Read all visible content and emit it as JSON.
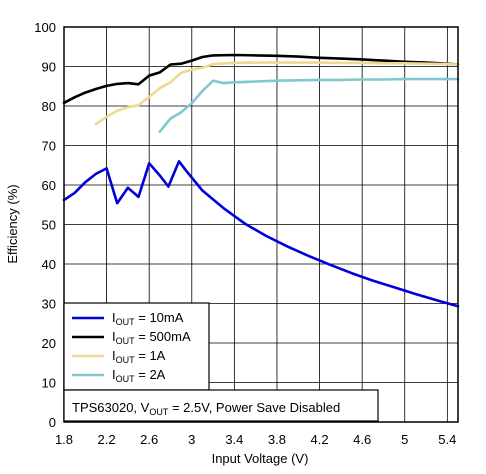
{
  "chart_data": {
    "type": "line",
    "xlabel": "Input Voltage (V)",
    "ylabel": "Efficiency (%)",
    "xlim": [
      1.8,
      5.5
    ],
    "ylim": [
      0,
      100
    ],
    "x_ticks": [
      "1.8",
      "2.2",
      "2.6",
      "3",
      "3.4",
      "3.8",
      "4.2",
      "4.6",
      "5",
      "5.4"
    ],
    "y_ticks": [
      "0",
      "10",
      "20",
      "30",
      "40",
      "50",
      "60",
      "70",
      "80",
      "90",
      "100"
    ],
    "x_tick_values": [
      1.8,
      2.2,
      2.6,
      3.0,
      3.4,
      3.8,
      4.2,
      4.6,
      5.0,
      5.4
    ],
    "y_tick_values": [
      0,
      10,
      20,
      30,
      40,
      50,
      60,
      70,
      80,
      90,
      100
    ],
    "grid": true,
    "legend_position": "bottom-left",
    "annotation": {
      "prefix": "TPS63020, V",
      "sub": "OUT",
      "suffix": " = 2.5V, Power Save Disabled"
    },
    "series": [
      {
        "name": "IOUT = 10mA",
        "label_prefix": "I",
        "label_sub": "OUT",
        "label_suffix": " = 10mA",
        "color": "#0000dd",
        "x": [
          1.8,
          1.9,
          2.0,
          2.1,
          2.2,
          2.3,
          2.4,
          2.5,
          2.6,
          2.7,
          2.78,
          2.88,
          2.95,
          3.1,
          3.3,
          3.5,
          3.7,
          3.9,
          4.1,
          4.3,
          4.5,
          4.7,
          4.9,
          5.1,
          5.3,
          5.5
        ],
        "y": [
          56.2,
          58.0,
          60.7,
          62.8,
          64.2,
          55.4,
          59.3,
          57.0,
          65.5,
          62.4,
          59.6,
          66.0,
          63.5,
          58.6,
          54.1,
          50.2,
          47.1,
          44.4,
          42.0,
          39.8,
          37.7,
          35.8,
          34.1,
          32.4,
          30.8,
          29.3
        ]
      },
      {
        "name": "IOUT = 500mA",
        "label_prefix": "I",
        "label_sub": "OUT",
        "label_suffix": " = 500mA",
        "color": "#000000",
        "x": [
          1.8,
          1.9,
          2.0,
          2.1,
          2.2,
          2.3,
          2.4,
          2.5,
          2.6,
          2.7,
          2.8,
          2.9,
          3.0,
          3.1,
          3.2,
          3.4,
          3.6,
          3.8,
          4.0,
          4.2,
          4.4,
          4.6,
          4.8,
          5.0,
          5.2,
          5.4,
          5.5
        ],
        "y": [
          80.8,
          82.2,
          83.4,
          84.3,
          85.1,
          85.6,
          85.8,
          85.5,
          87.7,
          88.5,
          90.5,
          90.7,
          91.5,
          92.4,
          92.8,
          92.9,
          92.8,
          92.7,
          92.5,
          92.2,
          92.0,
          91.8,
          91.5,
          91.2,
          91.0,
          90.7,
          90.5
        ]
      },
      {
        "name": "IOUT = 1A",
        "label_prefix": "I",
        "label_sub": "OUT",
        "label_suffix": " = 1A",
        "color": "#f0d890",
        "x": [
          2.1,
          2.2,
          2.3,
          2.4,
          2.5,
          2.6,
          2.7,
          2.8,
          2.9,
          3.0,
          3.1,
          3.2,
          3.4,
          3.6,
          3.8,
          4.0,
          4.2,
          4.4,
          4.6,
          4.8,
          5.0,
          5.2,
          5.4,
          5.5
        ],
        "y": [
          75.4,
          77.3,
          78.8,
          79.7,
          80.2,
          82.3,
          84.5,
          86.0,
          88.4,
          89.2,
          89.7,
          90.6,
          90.9,
          91.0,
          91.0,
          91.0,
          91.0,
          90.9,
          90.9,
          90.8,
          90.8,
          90.7,
          90.6,
          90.5
        ]
      },
      {
        "name": "IOUT = 2A",
        "label_prefix": "I",
        "label_sub": "OUT",
        "label_suffix": " = 2A",
        "color": "#80c8d0",
        "x": [
          2.7,
          2.8,
          2.9,
          3.0,
          3.1,
          3.2,
          3.3,
          3.4,
          3.6,
          3.8,
          4.0,
          4.2,
          4.4,
          4.6,
          4.8,
          5.0,
          5.2,
          5.4,
          5.5
        ],
        "y": [
          73.5,
          76.8,
          78.4,
          80.7,
          83.8,
          86.4,
          85.8,
          86.0,
          86.2,
          86.4,
          86.5,
          86.6,
          86.6,
          86.7,
          86.7,
          86.8,
          86.8,
          86.8,
          86.8
        ]
      }
    ]
  }
}
